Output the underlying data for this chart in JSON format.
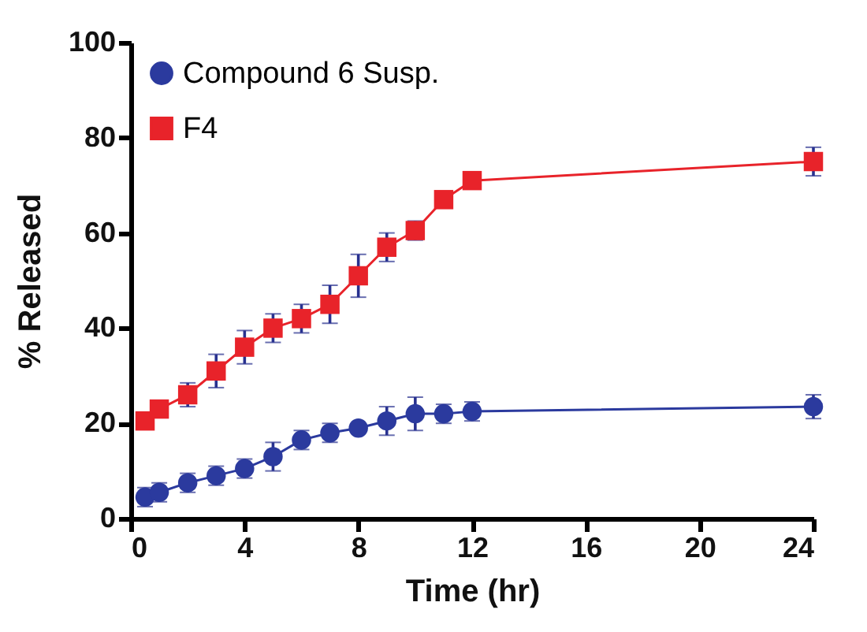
{
  "chart_data": {
    "type": "line",
    "xlabel": "Time (hr)",
    "ylabel": "% Released",
    "x": [
      0.5,
      1,
      2,
      3,
      4,
      5,
      6,
      7,
      8,
      9,
      10,
      11,
      12,
      24
    ],
    "series": [
      {
        "name": "Compound 6 Susp.",
        "color": "#2b3a9e",
        "marker": "circle",
        "values": [
          4.5,
          5.5,
          7.5,
          9,
          10.5,
          13,
          16.5,
          18,
          19,
          20.5,
          22,
          22,
          22.5,
          23.5
        ],
        "errors": [
          2,
          2,
          2,
          2,
          2,
          3,
          2,
          2,
          null,
          3,
          3.5,
          2,
          2,
          2.5
        ]
      },
      {
        "name": "F4",
        "color": "#e8232a",
        "marker": "square",
        "values": [
          20.5,
          23,
          26,
          31,
          36,
          40,
          42,
          45,
          51,
          57,
          60.5,
          67,
          71,
          75
        ],
        "errors": [
          null,
          null,
          2.5,
          3.5,
          3.5,
          3,
          3,
          4,
          4.5,
          3,
          2,
          null,
          null,
          3
        ]
      }
    ],
    "xlim": [
      0,
      24
    ],
    "xticks": [
      0,
      4,
      8,
      12,
      16,
      20,
      24
    ],
    "ylim": [
      0,
      100
    ],
    "yticks": [
      0,
      20,
      40,
      60,
      80,
      100
    ],
    "grid": false,
    "legend": "top left",
    "line_style": "solid"
  }
}
